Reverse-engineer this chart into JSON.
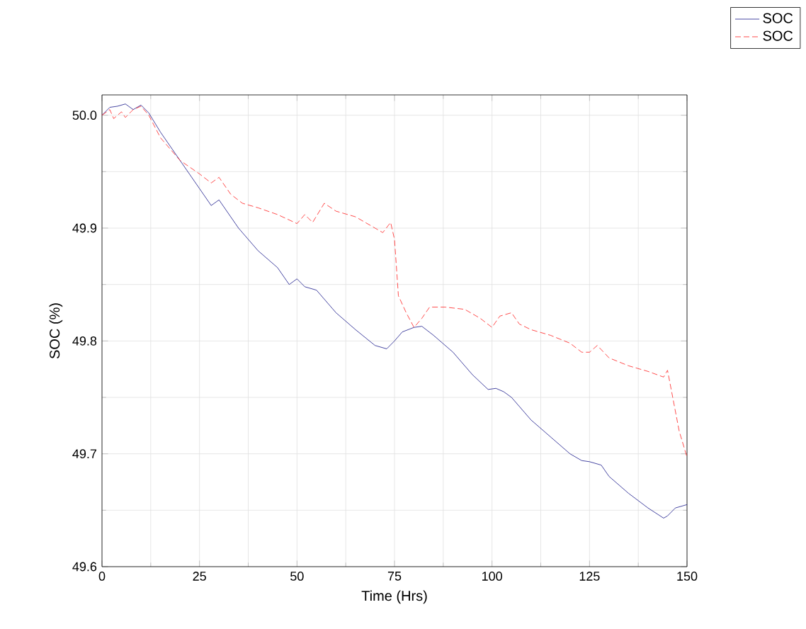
{
  "chart_data": {
    "type": "line",
    "xlabel": "Time (Hrs)",
    "ylabel": "SOC (%)",
    "xlim": [
      0,
      150
    ],
    "ylim": [
      49.6,
      50.018
    ],
    "xticks": [
      0,
      25,
      50,
      75,
      100,
      125,
      150
    ],
    "yticks": [
      49.6,
      49.7,
      49.8,
      49.9,
      {
        "value": 50.0,
        "label": "50.0"
      }
    ],
    "grid": true,
    "legend": "top right",
    "marker": "none",
    "series": [
      {
        "name": "SOC",
        "color": "#1a1a8c",
        "line_style": "solid",
        "x": [
          0,
          2,
          4,
          6,
          8,
          10,
          12,
          15,
          20,
          25,
          28,
          30,
          35,
          40,
          45,
          48,
          50,
          52,
          55,
          60,
          65,
          70,
          73,
          75,
          77,
          80,
          82,
          85,
          90,
          95,
          99,
          101,
          103,
          105,
          110,
          115,
          120,
          123,
          125,
          128,
          130,
          135,
          140,
          144,
          145,
          147,
          150
        ],
        "values": [
          50.0,
          50.007,
          50.008,
          50.01,
          50.005,
          50.009,
          50.002,
          49.985,
          49.96,
          49.935,
          49.92,
          49.925,
          49.9,
          49.88,
          49.865,
          49.85,
          49.855,
          49.848,
          49.845,
          49.825,
          49.81,
          49.796,
          49.793,
          49.8,
          49.808,
          49.812,
          49.813,
          49.805,
          49.79,
          49.77,
          49.757,
          49.758,
          49.755,
          49.75,
          49.73,
          49.715,
          49.7,
          49.694,
          49.693,
          49.69,
          49.68,
          49.665,
          49.652,
          49.643,
          49.645,
          49.652,
          49.655
        ]
      },
      {
        "name": "SOC",
        "color": "#ff2020",
        "line_style": "dashed",
        "x": [
          0,
          2,
          3,
          5,
          6,
          8,
          10,
          12,
          15,
          20,
          25,
          28,
          30,
          33,
          36,
          40,
          45,
          50,
          52,
          54,
          57,
          60,
          65,
          70,
          72,
          74,
          75,
          76,
          78,
          80,
          82,
          84,
          88,
          93,
          97,
          100,
          102,
          105,
          107,
          110,
          115,
          120,
          123,
          125,
          127,
          130,
          135,
          140,
          144,
          145,
          146.5,
          148,
          150
        ],
        "values": [
          50.0,
          50.005,
          49.997,
          50.003,
          49.998,
          50.005,
          50.008,
          50.0,
          49.98,
          49.96,
          49.948,
          49.94,
          49.945,
          49.93,
          49.922,
          49.918,
          49.912,
          49.904,
          49.912,
          49.905,
          49.922,
          49.915,
          49.91,
          49.9,
          49.896,
          49.905,
          49.89,
          49.84,
          49.825,
          49.812,
          49.82,
          49.83,
          49.83,
          49.828,
          49.82,
          49.812,
          49.822,
          49.825,
          49.815,
          49.81,
          49.805,
          49.798,
          49.79,
          49.79,
          49.796,
          49.785,
          49.778,
          49.773,
          49.768,
          49.774,
          49.747,
          49.72,
          49.697
        ]
      }
    ]
  }
}
